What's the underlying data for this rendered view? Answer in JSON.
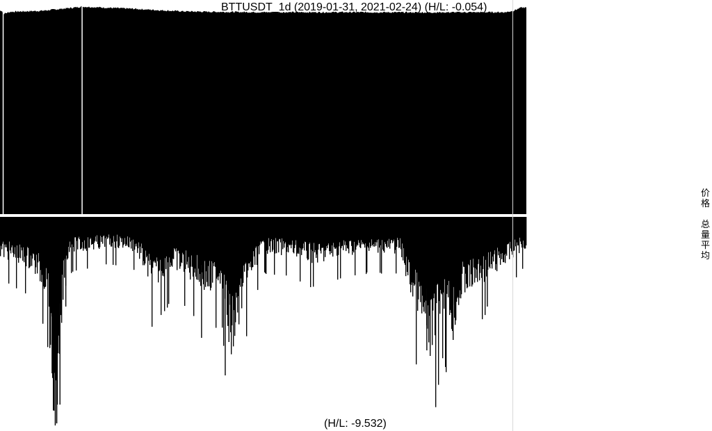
{
  "chart_data": [
    {
      "type": "area",
      "panel": "price",
      "title": "BTTUSDT_1d (2019-01-31, 2021-02-24) (H/L: -0.054)",
      "symbol": "BTTUSDT",
      "interval": "1d",
      "start_date": "2019-01-31",
      "end_date": "2021-02-24",
      "hl_ratio": -0.054,
      "legend": "价格",
      "fill_color": "#000000",
      "grid": false,
      "gaps": [
        0.005,
        0.155
      ],
      "profile": [
        {
          "t": 0.0,
          "v": 0.975
        },
        {
          "t": 0.004,
          "v": 0.975
        },
        {
          "t": 0.006,
          "v": 0.96
        },
        {
          "t": 0.02,
          "v": 0.97
        },
        {
          "t": 0.08,
          "v": 0.975
        },
        {
          "t": 0.12,
          "v": 0.985
        },
        {
          "t": 0.14,
          "v": 0.99
        },
        {
          "t": 0.155,
          "v": 0.995
        },
        {
          "t": 0.2,
          "v": 0.99
        },
        {
          "t": 0.25,
          "v": 0.985
        },
        {
          "t": 0.3,
          "v": 0.978
        },
        {
          "t": 0.35,
          "v": 0.972
        },
        {
          "t": 0.4,
          "v": 0.97
        },
        {
          "t": 0.5,
          "v": 0.968
        },
        {
          "t": 0.6,
          "v": 0.968
        },
        {
          "t": 0.7,
          "v": 0.968
        },
        {
          "t": 0.8,
          "v": 0.967
        },
        {
          "t": 0.9,
          "v": 0.968
        },
        {
          "t": 0.96,
          "v": 0.968
        },
        {
          "t": 0.975,
          "v": 0.975
        },
        {
          "t": 0.99,
          "v": 0.99
        },
        {
          "t": 1.0,
          "v": 0.99
        }
      ]
    },
    {
      "type": "bar",
      "panel": "volume",
      "hl_ratio": -9.532,
      "label": "(H/L: -9.532)",
      "legend": "总量平均",
      "bar_color": "#000000",
      "grid": false,
      "profile": [
        {
          "t": 0.0,
          "v": 0.15
        },
        {
          "t": 0.03,
          "v": 0.18
        },
        {
          "t": 0.06,
          "v": 0.2
        },
        {
          "t": 0.09,
          "v": 0.3
        },
        {
          "t": 0.1,
          "v": 0.75
        },
        {
          "t": 0.105,
          "v": 0.98
        },
        {
          "t": 0.11,
          "v": 0.8
        },
        {
          "t": 0.12,
          "v": 0.3
        },
        {
          "t": 0.13,
          "v": 0.14
        },
        {
          "t": 0.2,
          "v": 0.12
        },
        {
          "t": 0.24,
          "v": 0.12
        },
        {
          "t": 0.26,
          "v": 0.14
        },
        {
          "t": 0.29,
          "v": 0.28
        },
        {
          "t": 0.33,
          "v": 0.2
        },
        {
          "t": 0.37,
          "v": 0.25
        },
        {
          "t": 0.4,
          "v": 0.3
        },
        {
          "t": 0.42,
          "v": 0.25
        },
        {
          "t": 0.44,
          "v": 0.55
        },
        {
          "t": 0.46,
          "v": 0.35
        },
        {
          "t": 0.48,
          "v": 0.22
        },
        {
          "t": 0.5,
          "v": 0.14
        },
        {
          "t": 0.55,
          "v": 0.15
        },
        {
          "t": 0.6,
          "v": 0.18
        },
        {
          "t": 0.65,
          "v": 0.15
        },
        {
          "t": 0.7,
          "v": 0.14
        },
        {
          "t": 0.76,
          "v": 0.14
        },
        {
          "t": 0.78,
          "v": 0.3
        },
        {
          "t": 0.8,
          "v": 0.42
        },
        {
          "t": 0.82,
          "v": 0.55
        },
        {
          "t": 0.84,
          "v": 0.35
        },
        {
          "t": 0.86,
          "v": 0.45
        },
        {
          "t": 0.88,
          "v": 0.3
        },
        {
          "t": 0.92,
          "v": 0.25
        },
        {
          "t": 0.96,
          "v": 0.18
        },
        {
          "t": 1.0,
          "v": 0.12
        }
      ],
      "spikes": [
        {
          "t": 0.098,
          "v": 0.75
        },
        {
          "t": 0.104,
          "v": 1.0
        },
        {
          "t": 0.108,
          "v": 0.9
        },
        {
          "t": 0.113,
          "v": 0.9
        },
        {
          "t": 0.124,
          "v": 0.33
        },
        {
          "t": 0.382,
          "v": 0.58
        },
        {
          "t": 0.427,
          "v": 0.76
        },
        {
          "t": 0.434,
          "v": 0.6
        },
        {
          "t": 0.81,
          "v": 0.52
        },
        {
          "t": 0.81,
          "v": 0.64
        },
        {
          "t": 0.86,
          "v": 0.59
        },
        {
          "t": 0.925,
          "v": 0.43
        }
      ]
    }
  ]
}
